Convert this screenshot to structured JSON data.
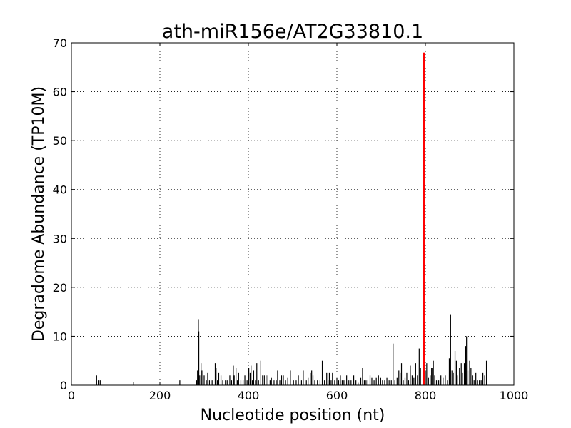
{
  "chart_data": {
    "type": "bar",
    "title": "ath-miR156e/AT2G33810.1",
    "xlabel": "Nucleotide position (nt)",
    "ylabel": "Degradome Abundance (TP10M)",
    "xlim": [
      0,
      1000
    ],
    "ylim": [
      0,
      70
    ],
    "xticks": [
      0,
      200,
      400,
      600,
      800,
      1000
    ],
    "yticks": [
      0,
      10,
      20,
      30,
      40,
      50,
      60,
      70
    ],
    "grid": true,
    "series": [
      {
        "color": "#000000",
        "points": [
          [
            57,
            2.0
          ],
          [
            62,
            1.0
          ],
          [
            65,
            1.0
          ],
          [
            140,
            0.6
          ],
          [
            245,
            1.0
          ],
          [
            283,
            1.0
          ],
          [
            285,
            3.0
          ],
          [
            287,
            13.5
          ],
          [
            288,
            11.0
          ],
          [
            290,
            2.0
          ],
          [
            293,
            4.5
          ],
          [
            295,
            3.0
          ],
          [
            300,
            2.0
          ],
          [
            305,
            1.0
          ],
          [
            308,
            2.5
          ],
          [
            312,
            1.0
          ],
          [
            318,
            1.0
          ],
          [
            325,
            4.5
          ],
          [
            327,
            3.5
          ],
          [
            330,
            1.0
          ],
          [
            333,
            2.5
          ],
          [
            338,
            2.0
          ],
          [
            342,
            1.0
          ],
          [
            348,
            1.0
          ],
          [
            352,
            1.0
          ],
          [
            358,
            2.0
          ],
          [
            362,
            1.0
          ],
          [
            366,
            4.0
          ],
          [
            368,
            2.0
          ],
          [
            372,
            3.5
          ],
          [
            375,
            1.0
          ],
          [
            378,
            2.5
          ],
          [
            383,
            1.0
          ],
          [
            388,
            1.0
          ],
          [
            392,
            2.0
          ],
          [
            397,
            1.0
          ],
          [
            401,
            3.5
          ],
          [
            404,
            2.5
          ],
          [
            406,
            4.0
          ],
          [
            409,
            1.0
          ],
          [
            412,
            3.0
          ],
          [
            416,
            1.0
          ],
          [
            419,
            4.5
          ],
          [
            423,
            1.0
          ],
          [
            428,
            5.0
          ],
          [
            432,
            2.0
          ],
          [
            436,
            2.0
          ],
          [
            440,
            2.0
          ],
          [
            444,
            2.0
          ],
          [
            449,
            1.0
          ],
          [
            452,
            1.5
          ],
          [
            458,
            1.0
          ],
          [
            463,
            1.0
          ],
          [
            466,
            3.0
          ],
          [
            471,
            1.0
          ],
          [
            475,
            2.0
          ],
          [
            479,
            2.0
          ],
          [
            484,
            1.0
          ],
          [
            489,
            1.5
          ],
          [
            495,
            3.0
          ],
          [
            502,
            1.0
          ],
          [
            508,
            1.0
          ],
          [
            513,
            2.0
          ],
          [
            520,
            1.0
          ],
          [
            524,
            3.0
          ],
          [
            531,
            1.0
          ],
          [
            535,
            1.5
          ],
          [
            540,
            2.5
          ],
          [
            543,
            3.0
          ],
          [
            546,
            2.0
          ],
          [
            550,
            1.0
          ],
          [
            556,
            1.0
          ],
          [
            562,
            1.0
          ],
          [
            567,
            5.0
          ],
          [
            572,
            1.0
          ],
          [
            577,
            2.5
          ],
          [
            580,
            1.0
          ],
          [
            583,
            2.5
          ],
          [
            587,
            1.0
          ],
          [
            590,
            2.5
          ],
          [
            595,
            1.0
          ],
          [
            600,
            1.5
          ],
          [
            604,
            1.0
          ],
          [
            608,
            2.0
          ],
          [
            612,
            1.0
          ],
          [
            616,
            1.0
          ],
          [
            622,
            2.0
          ],
          [
            627,
            1.0
          ],
          [
            632,
            1.0
          ],
          [
            638,
            2.0
          ],
          [
            643,
            1.0
          ],
          [
            648,
            0.5
          ],
          [
            654,
            1.5
          ],
          [
            658,
            3.5
          ],
          [
            662,
            1.0
          ],
          [
            666,
            1.0
          ],
          [
            670,
            1.0
          ],
          [
            675,
            2.0
          ],
          [
            679,
            1.5
          ],
          [
            684,
            1.0
          ],
          [
            689,
            1.5
          ],
          [
            694,
            2.0
          ],
          [
            699,
            1.5
          ],
          [
            703,
            1.0
          ],
          [
            708,
            1.0
          ],
          [
            713,
            1.5
          ],
          [
            718,
            1.0
          ],
          [
            723,
            1.0
          ],
          [
            727,
            8.5
          ],
          [
            731,
            1.0
          ],
          [
            736,
            1.5
          ],
          [
            740,
            3.0
          ],
          [
            743,
            2.5
          ],
          [
            746,
            4.5
          ],
          [
            750,
            1.0
          ],
          [
            754,
            1.5
          ],
          [
            758,
            2.5
          ],
          [
            762,
            1.0
          ],
          [
            766,
            4.0
          ],
          [
            770,
            2.0
          ],
          [
            774,
            1.5
          ],
          [
            778,
            4.5
          ],
          [
            782,
            2.0
          ],
          [
            786,
            7.5
          ],
          [
            789,
            3.5
          ],
          [
            800,
            3.0
          ],
          [
            803,
            4.5
          ],
          [
            807,
            1.5
          ],
          [
            811,
            2.0
          ],
          [
            814,
            3.5
          ],
          [
            816,
            3.5
          ],
          [
            818,
            5.0
          ],
          [
            821,
            2.0
          ],
          [
            825,
            1.0
          ],
          [
            830,
            1.0
          ],
          [
            835,
            2.0
          ],
          [
            840,
            1.5
          ],
          [
            845,
            2.0
          ],
          [
            850,
            1.0
          ],
          [
            854,
            5.5
          ],
          [
            857,
            14.5
          ],
          [
            860,
            3.0
          ],
          [
            863,
            2.5
          ],
          [
            867,
            7.0
          ],
          [
            870,
            5.0
          ],
          [
            873,
            2.0
          ],
          [
            877,
            3.5
          ],
          [
            881,
            4.5
          ],
          [
            884,
            2.5
          ],
          [
            888,
            4.5
          ],
          [
            891,
            8.0
          ],
          [
            893,
            10.0
          ],
          [
            896,
            3.0
          ],
          [
            900,
            5.0
          ],
          [
            903,
            3.5
          ],
          [
            906,
            2.0
          ],
          [
            910,
            1.0
          ],
          [
            914,
            2.5
          ],
          [
            918,
            1.0
          ],
          [
            922,
            1.0
          ],
          [
            926,
            1.0
          ],
          [
            930,
            2.5
          ],
          [
            934,
            2.0
          ],
          [
            938,
            5.0
          ]
        ]
      },
      {
        "color": "#ff0000",
        "points": [
          [
            796,
            68.0
          ]
        ]
      }
    ]
  }
}
